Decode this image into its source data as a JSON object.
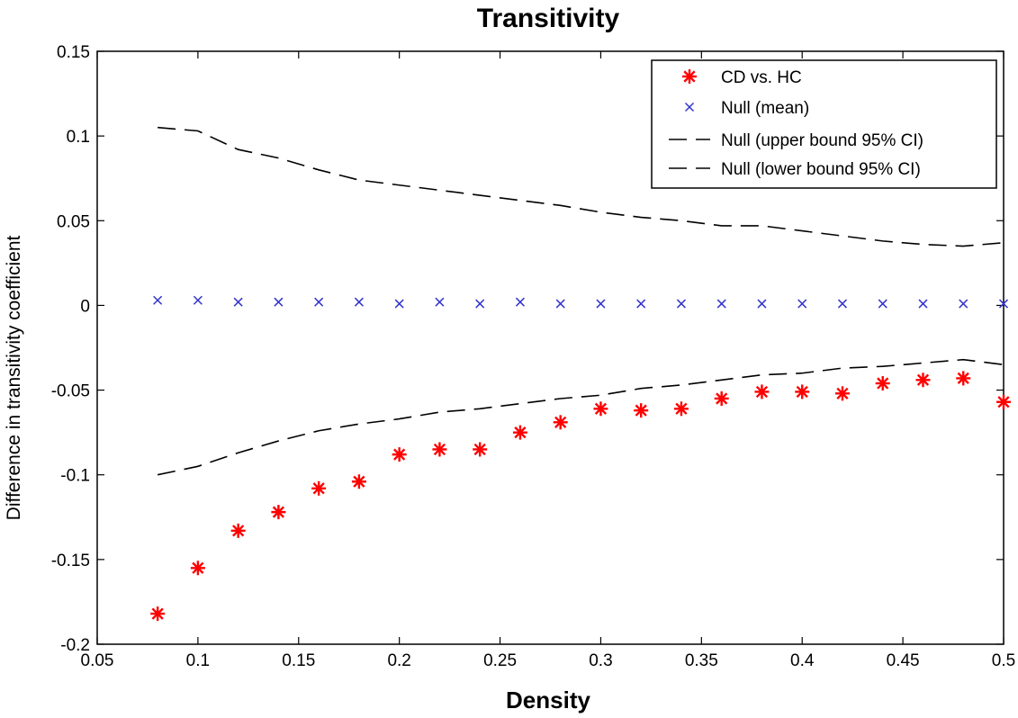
{
  "chart_data": {
    "type": "scatter",
    "title": "Transitivity",
    "xlabel": "Density",
    "ylabel": "Difference in transitivity coefficient",
    "xlim": [
      0.05,
      0.5
    ],
    "ylim": [
      -0.2,
      0.15
    ],
    "xticks": [
      "0.05",
      "0.1",
      "0.15",
      "0.2",
      "0.25",
      "0.3",
      "0.35",
      "0.4",
      "0.45",
      "0.5"
    ],
    "yticks": [
      "-0.2",
      "-0.15",
      "-0.1",
      "-0.05",
      "0",
      "0.05",
      "0.1",
      "0.15"
    ],
    "grid": false,
    "legend_position": "top-right",
    "x": [
      0.08,
      0.1,
      0.12,
      0.14,
      0.16,
      0.18,
      0.2,
      0.22,
      0.24,
      0.26,
      0.28,
      0.3,
      0.32,
      0.34,
      0.36,
      0.38,
      0.4,
      0.42,
      0.44,
      0.46,
      0.48,
      0.5
    ],
    "series": [
      {
        "name": "CD vs. HC",
        "marker": "asterisk",
        "color": "#ff0000",
        "values": [
          -0.182,
          -0.155,
          -0.133,
          -0.122,
          -0.108,
          -0.104,
          -0.088,
          -0.085,
          -0.085,
          -0.075,
          -0.069,
          -0.061,
          -0.062,
          -0.061,
          -0.055,
          -0.051,
          -0.051,
          -0.052,
          -0.046,
          -0.044,
          -0.043,
          -0.057
        ]
      },
      {
        "name": "Null (mean)",
        "marker": "x",
        "color": "#3333cc",
        "values": [
          0.003,
          0.003,
          0.002,
          0.002,
          0.002,
          0.002,
          0.001,
          0.002,
          0.001,
          0.002,
          0.001,
          0.001,
          0.001,
          0.001,
          0.001,
          0.001,
          0.001,
          0.001,
          0.001,
          0.001,
          0.001,
          0.001
        ]
      },
      {
        "name": "Null (upper bound 95% CI)",
        "marker": "dashed-line",
        "color": "#000000",
        "values": [
          0.105,
          0.103,
          0.092,
          0.087,
          0.08,
          0.074,
          0.071,
          0.068,
          0.065,
          0.062,
          0.059,
          0.055,
          0.052,
          0.05,
          0.047,
          0.047,
          0.044,
          0.041,
          0.038,
          0.036,
          0.035,
          0.037
        ]
      },
      {
        "name": "Null (lower bound 95% CI)",
        "marker": "dashed-line",
        "color": "#000000",
        "values": [
          -0.1,
          -0.095,
          -0.087,
          -0.08,
          -0.074,
          -0.07,
          -0.067,
          -0.063,
          -0.061,
          -0.058,
          -0.055,
          -0.053,
          -0.049,
          -0.047,
          -0.044,
          -0.041,
          -0.04,
          -0.037,
          -0.036,
          -0.034,
          -0.032,
          -0.035
        ]
      }
    ]
  }
}
